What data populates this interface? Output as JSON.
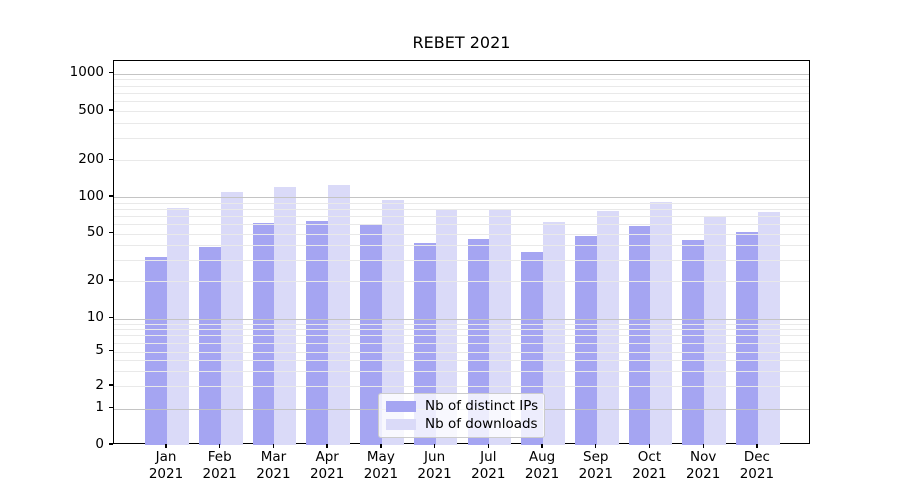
{
  "title": "REBET 2021",
  "colors": {
    "distinct_ips_bar": "#a5a5f2",
    "downloads_bar": "#dadaf8",
    "grid_major": "#c4c4c4",
    "grid_minor": "#e9e9e9",
    "axis": "#000000"
  },
  "legend": {
    "items": [
      {
        "label": "Nb of distinct IPs",
        "series": "distinct_ips"
      },
      {
        "label": "Nb of downloads",
        "series": "downloads"
      }
    ]
  },
  "chart_data": {
    "type": "bar",
    "title": "REBET 2021",
    "categories": [
      "Jan 2021",
      "Feb 2021",
      "Mar 2021",
      "Apr 2021",
      "May 2021",
      "Jun 2021",
      "Jul 2021",
      "Aug 2021",
      "Sep 2021",
      "Oct 2021",
      "Nov 2021",
      "Dec 2021"
    ],
    "month_labels": [
      "Jan",
      "Feb",
      "Mar",
      "Apr",
      "May",
      "Jun",
      "Jul",
      "Aug",
      "Sep",
      "Oct",
      "Nov",
      "Dec"
    ],
    "year": "2021",
    "series": [
      {
        "name": "Nb of distinct IPs",
        "values": [
          32,
          39,
          61,
          64,
          60,
          42,
          45,
          35,
          48,
          58,
          44,
          52
        ]
      },
      {
        "name": "Nb of downloads",
        "values": [
          81,
          110,
          120,
          125,
          95,
          79,
          78,
          62,
          77,
          91,
          68,
          75
        ]
      }
    ],
    "xlabel": "",
    "ylabel": "",
    "yscale": "symlog",
    "yticks": [
      0,
      1,
      2,
      5,
      10,
      20,
      50,
      100,
      200,
      500,
      1000
    ],
    "ylim": [
      0,
      1300
    ],
    "grid": "on",
    "legend_position": "lower center"
  }
}
